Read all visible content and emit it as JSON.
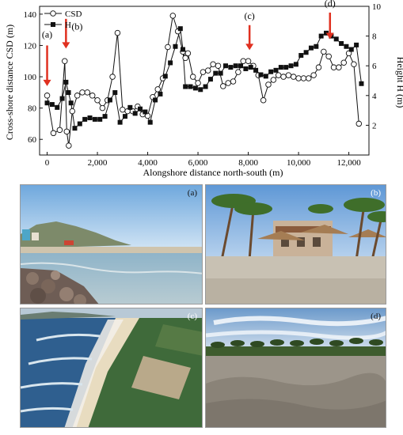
{
  "chart_data": {
    "type": "line",
    "xlabel": "Alongshore distance north-south (m)",
    "ylabel_left": "Cross-shore distance CSD (m)",
    "ylabel_right": "Height H (m)",
    "xlim": [
      -300,
      12800
    ],
    "ylim_left": [
      50,
      145
    ],
    "ylim_right": [
      0,
      10
    ],
    "x_ticks": [
      0,
      2000,
      4000,
      6000,
      8000,
      10000,
      12000
    ],
    "x_tick_labels": [
      "0",
      "2,000",
      "4,000",
      "6,000",
      "8,000",
      "10,000",
      "12,000"
    ],
    "y_left_ticks": [
      60,
      80,
      100,
      120,
      140
    ],
    "y_left_tick_labels": [
      "60",
      "80",
      "100",
      "120",
      "140"
    ],
    "y_right_ticks": [
      2,
      4,
      6,
      8,
      10
    ],
    "y_right_tick_labels": [
      "2",
      "4",
      "6",
      "8",
      "10"
    ],
    "legend_position": "top-left",
    "series": [
      {
        "name": "CSD",
        "axis": "left",
        "marker": "open-circle",
        "x": [
          0,
          250,
          500,
          700,
          780,
          860,
          1000,
          1200,
          1400,
          1600,
          1800,
          2000,
          2200,
          2400,
          2600,
          2800,
          3000,
          3200,
          3400,
          3600,
          3800,
          4000,
          4200,
          4400,
          4600,
          4800,
          5000,
          5200,
          5400,
          5500,
          5600,
          5800,
          6000,
          6200,
          6400,
          6600,
          6800,
          7000,
          7200,
          7400,
          7600,
          7800,
          8000,
          8200,
          8400,
          8600,
          8800,
          9000,
          9200,
          9400,
          9600,
          9800,
          10000,
          10200,
          10400,
          10600,
          10800,
          11000,
          11200,
          11400,
          11600,
          11800,
          12000,
          12200,
          12400
        ],
        "values": [
          88,
          64,
          66,
          110,
          65,
          56,
          78,
          88,
          90,
          90,
          88,
          85,
          80,
          85,
          100,
          128,
          79,
          78,
          78,
          81,
          76,
          75,
          87,
          92,
          99,
          119,
          139,
          129,
          116,
          112,
          115,
          100,
          96,
          103,
          104,
          108,
          107,
          94,
          96,
          97,
          103,
          110,
          110,
          107,
          101,
          85,
          95,
          98,
          101,
          100,
          101,
          100,
          99,
          99,
          99,
          101,
          106,
          116,
          113,
          106,
          106,
          109,
          115,
          108,
          70
        ]
      },
      {
        "name": "H",
        "axis": "right",
        "marker": "filled-square",
        "x": [
          0,
          200,
          400,
          600,
          750,
          850,
          950,
          1100,
          1300,
          1500,
          1700,
          1900,
          2100,
          2300,
          2500,
          2700,
          2900,
          3100,
          3300,
          3500,
          3700,
          3900,
          4100,
          4300,
          4500,
          4700,
          4900,
          5100,
          5300,
          5400,
          5500,
          5700,
          5900,
          6100,
          6300,
          6500,
          6700,
          6900,
          7100,
          7300,
          7500,
          7700,
          7900,
          8100,
          8300,
          8500,
          8700,
          8900,
          9100,
          9300,
          9500,
          9700,
          9900,
          10100,
          10300,
          10500,
          10700,
          10900,
          11100,
          11300,
          11500,
          11700,
          11900,
          12100,
          12300,
          12500
        ],
        "values": [
          3.5,
          3.4,
          3.2,
          3.8,
          4.9,
          4.2,
          3.5,
          1.8,
          2.1,
          2.4,
          2.5,
          2.4,
          2.4,
          2.6,
          3.7,
          4.2,
          2.2,
          2.6,
          3.2,
          2.8,
          3.1,
          2.9,
          2.2,
          3.7,
          4.1,
          5.3,
          6.2,
          7.3,
          8.5,
          7.1,
          4.6,
          4.6,
          4.5,
          4.4,
          4.6,
          5.1,
          5.5,
          5.5,
          6.0,
          5.9,
          6.0,
          6.0,
          5.8,
          5.9,
          5.7,
          5.4,
          5.3,
          5.6,
          5.7,
          5.9,
          5.9,
          6.0,
          6.1,
          6.7,
          6.9,
          7.2,
          7.3,
          8.0,
          8.2,
          8.0,
          7.8,
          7.5,
          7.3,
          7.1,
          7.4,
          4.8
        ]
      }
    ],
    "annotations": [
      {
        "label": "(a)",
        "x": 0,
        "text_csd": 127,
        "arrow_top_csd": 120,
        "arrow_tip_csd": 94
      },
      {
        "label": "(b)",
        "x": 750,
        "text_csd": 132,
        "arrow_top_csd": 137,
        "arrow_tip_csd": 118
      },
      {
        "label": "(c)",
        "x": 8050,
        "text_csd": 139,
        "arrow_top_csd": 133,
        "arrow_tip_csd": 117
      },
      {
        "label": "(d)",
        "x": 11250,
        "text_csd": 147,
        "arrow_top_csd": 141,
        "arrow_tip_csd": 124
      }
    ]
  },
  "photos": [
    {
      "label": "(a)"
    },
    {
      "label": "(b)"
    },
    {
      "label": "(c)"
    },
    {
      "label": "(d)"
    }
  ],
  "colors": {
    "arrow": "#e03020",
    "line": "#111111",
    "marker_fill_open": "#ffffff"
  }
}
